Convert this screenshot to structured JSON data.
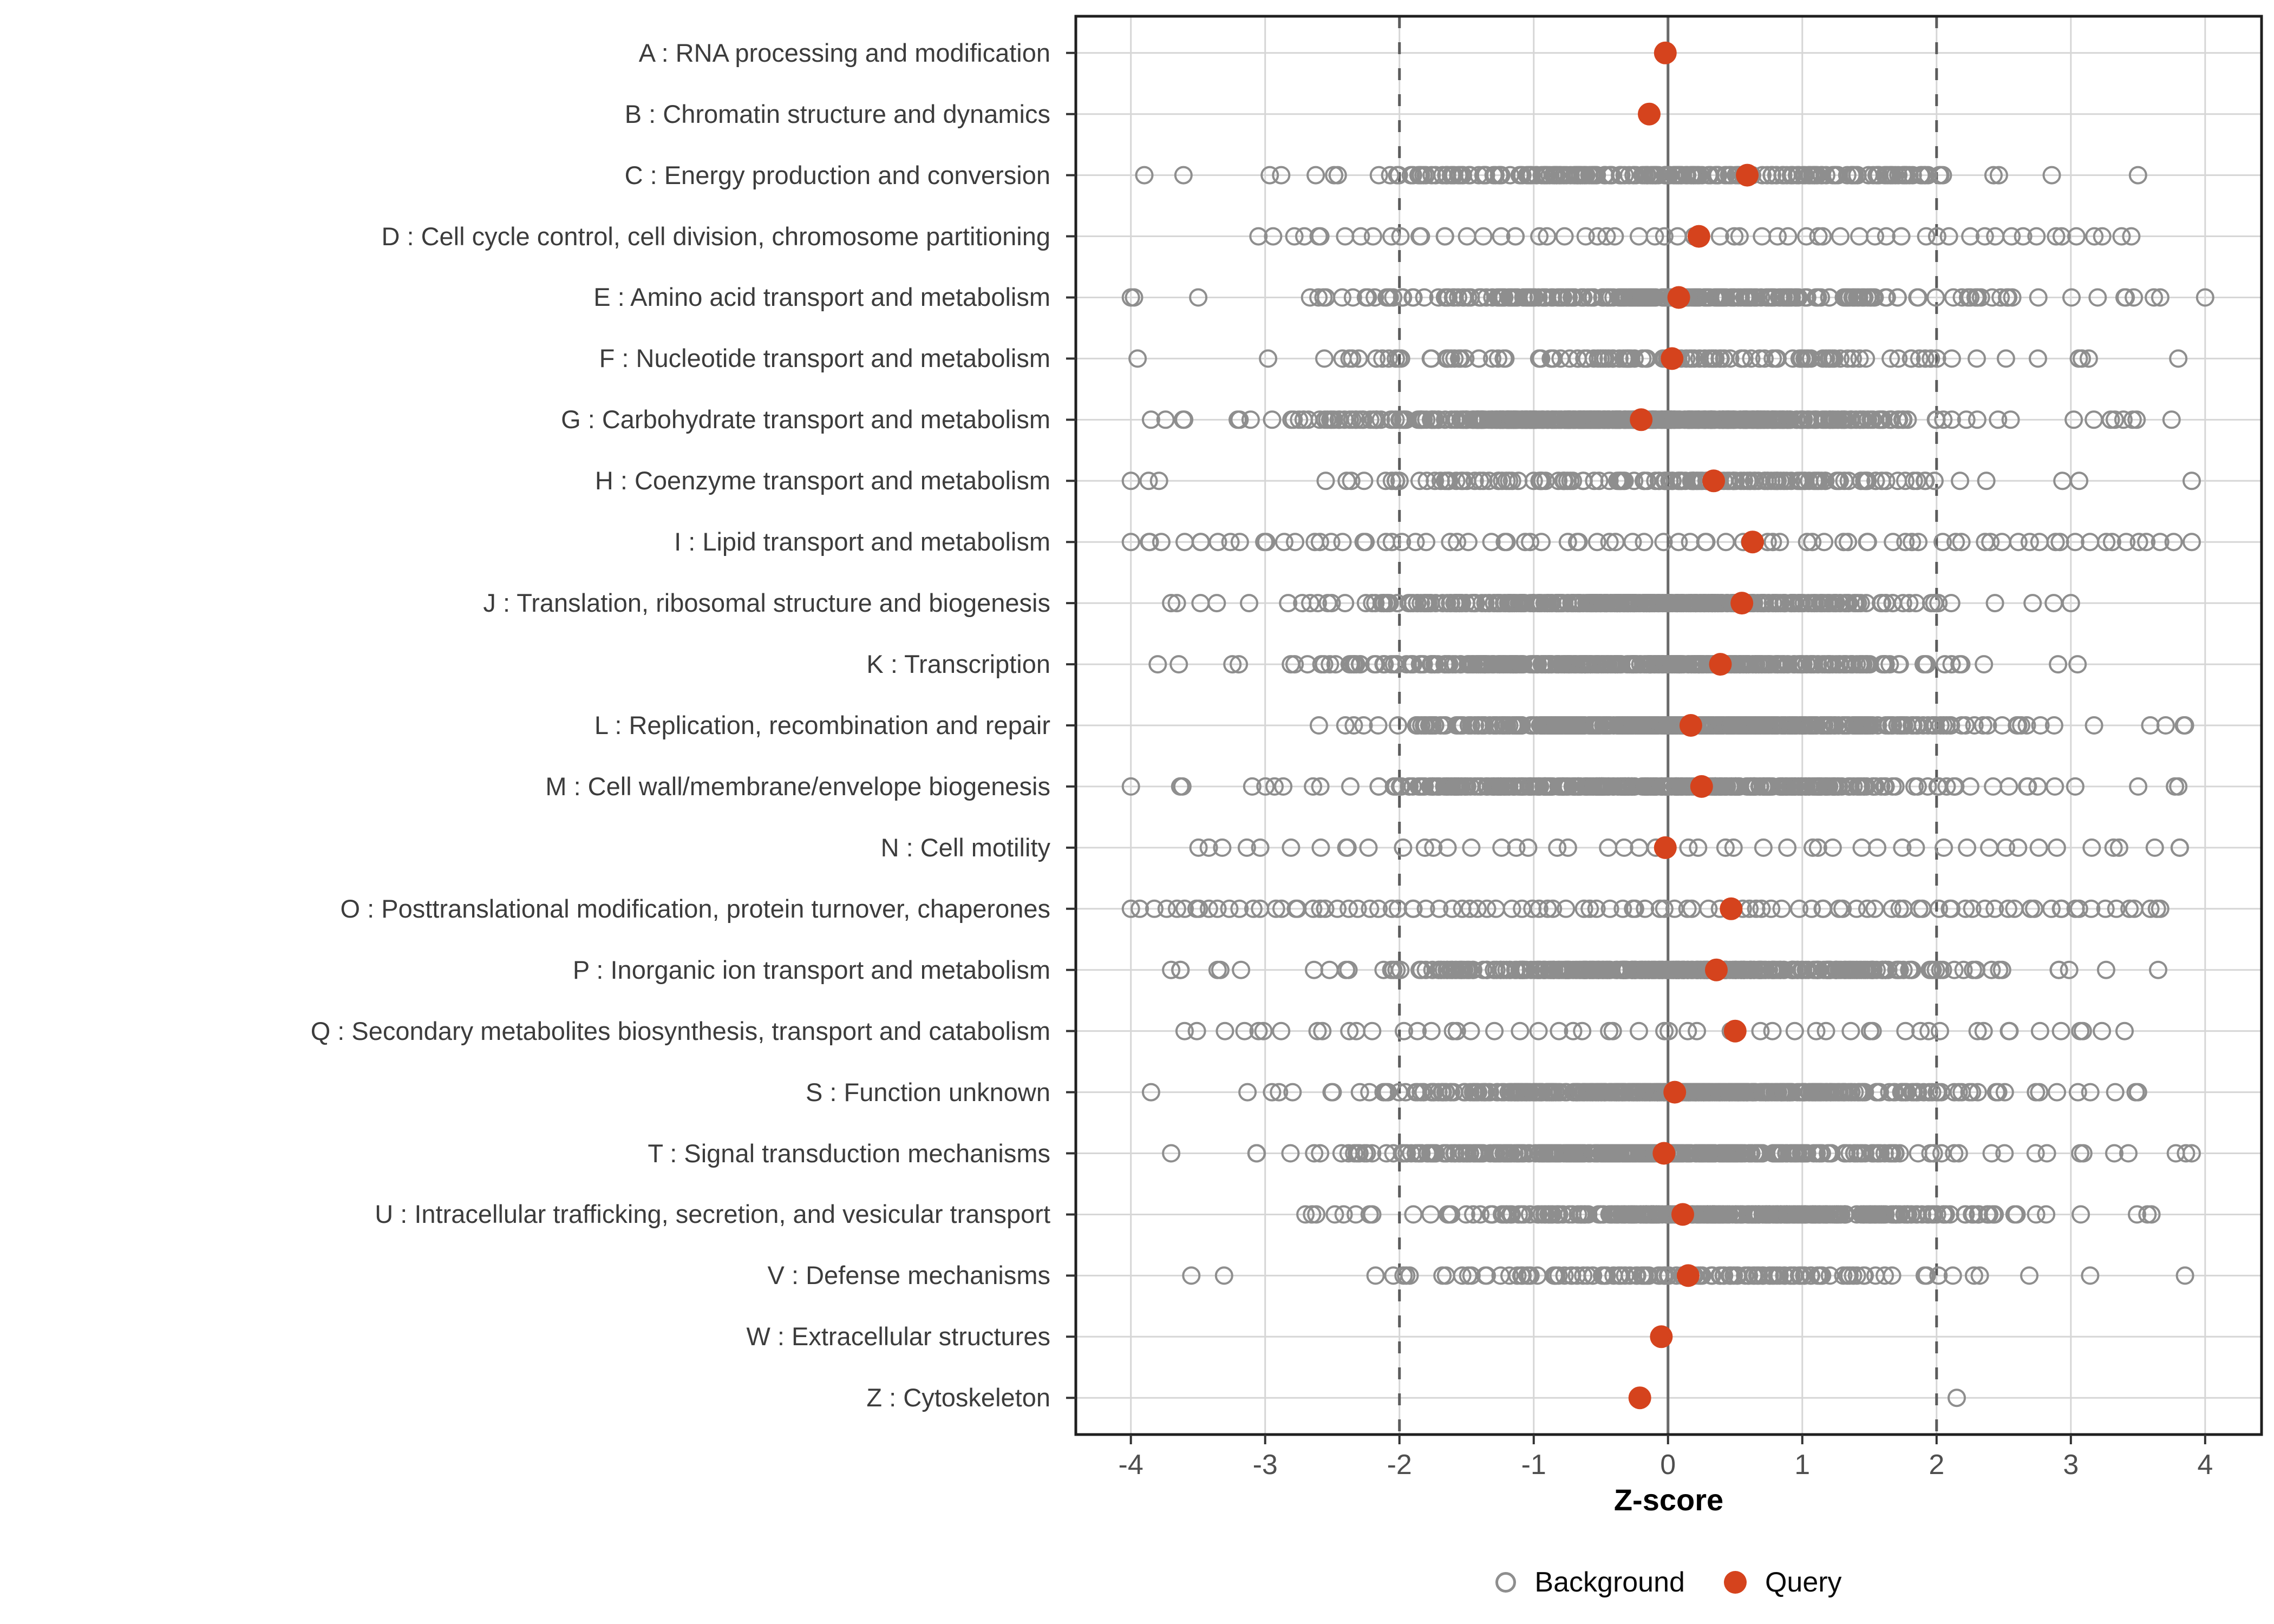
{
  "colors": {
    "query": "#d5431d",
    "background_stroke": "#8e8e8e",
    "gridline": "#d6d6d6",
    "zero_line": "#6a6a6a",
    "threshold_line": "#5c5c5c",
    "panel_border": "#1f1f1f",
    "axis_tick": "#333333",
    "category_text": "#3c3c3c",
    "tick_text": "#4f4f4f",
    "axis_title_text": "#000000"
  },
  "chart_data": {
    "type": "scatter",
    "title": "",
    "xlabel": "Z-score",
    "ylabel": "",
    "x_ticks": [
      -4,
      -3,
      -2,
      -1,
      0,
      1,
      2,
      3,
      4
    ],
    "xlim": [
      -4.41,
      4.42
    ],
    "grid": true,
    "legend_position": "bottom",
    "reference_lines": {
      "solid_at": [
        0
      ],
      "dashed_at": [
        -2,
        2
      ]
    },
    "legend": [
      {
        "label": "Background",
        "marker": "open-circle"
      },
      {
        "label": "Query",
        "marker": "filled-circle"
      }
    ],
    "categories": [
      {
        "code": "A",
        "label": "A : RNA processing and modification",
        "query_z": -0.02,
        "background": {
          "style": "none"
        }
      },
      {
        "code": "B",
        "label": "B : Chromatin structure and dynamics",
        "query_z": -0.14,
        "background": {
          "style": "none"
        }
      },
      {
        "code": "C",
        "label": "C : Energy production and conversion",
        "query_z": 0.59,
        "background": {
          "style": "normal",
          "count": 260,
          "mean": 0.1,
          "sd": 1.05,
          "min": -3.9,
          "max": 3.5
        }
      },
      {
        "code": "D",
        "label": "D : Cell cycle control, cell division, chromosome partitioning",
        "query_z": 0.23,
        "background": {
          "style": "spread",
          "count": 64,
          "min": -3.05,
          "max": 3.45
        }
      },
      {
        "code": "E",
        "label": "E : Amino acid transport and metabolism",
        "query_z": 0.08,
        "background": {
          "style": "normal",
          "count": 300,
          "mean": 0.0,
          "sd": 1.1,
          "min": -4.0,
          "max": 4.0
        }
      },
      {
        "code": "F",
        "label": "F : Nucleotide transport and metabolism",
        "query_z": 0.03,
        "background": {
          "style": "normal",
          "count": 130,
          "mean": 0.0,
          "sd": 1.15,
          "min": -3.95,
          "max": 3.8
        }
      },
      {
        "code": "G",
        "label": "G : Carbohydrate transport and metabolism",
        "query_z": -0.2,
        "background": {
          "style": "normal",
          "count": 580,
          "mean": -0.25,
          "sd": 1.0,
          "min": -3.85,
          "max": 3.75
        }
      },
      {
        "code": "H",
        "label": "H : Coenzyme transport and metabolism",
        "query_z": 0.34,
        "background": {
          "style": "normal",
          "count": 170,
          "mean": -0.1,
          "sd": 1.1,
          "min": -4.0,
          "max": 3.9
        }
      },
      {
        "code": "I",
        "label": "I : Lipid transport and metabolism",
        "query_z": 0.63,
        "background": {
          "style": "spread",
          "count": 85,
          "min": -4.0,
          "max": 3.9
        }
      },
      {
        "code": "J",
        "label": "J : Translation, ribosomal structure and biogenesis",
        "query_z": 0.55,
        "background": {
          "style": "normal",
          "count": 380,
          "mean": -0.1,
          "sd": 1.0,
          "min": -3.7,
          "max": 3.0
        }
      },
      {
        "code": "K",
        "label": "K : Transcription",
        "query_z": 0.39,
        "background": {
          "style": "normal",
          "count": 420,
          "mean": -0.15,
          "sd": 1.0,
          "min": -3.8,
          "max": 3.05
        }
      },
      {
        "code": "L",
        "label": "L : Replication, recombination and repair",
        "query_z": 0.17,
        "background": {
          "style": "normal",
          "count": 470,
          "mean": 0.1,
          "sd": 0.9,
          "min": -2.6,
          "max": 3.85
        }
      },
      {
        "code": "M",
        "label": "M : Cell wall/membrane/envelope biogenesis",
        "query_z": 0.25,
        "background": {
          "style": "normal",
          "count": 460,
          "mean": 0.0,
          "sd": 0.95,
          "min": -4.0,
          "max": 3.8
        }
      },
      {
        "code": "N",
        "label": "N : Cell motility",
        "query_z": -0.02,
        "background": {
          "style": "spread",
          "count": 50,
          "min": -3.55,
          "max": 3.9
        }
      },
      {
        "code": "O",
        "label": "O : Posttranslational modification, protein turnover, chaperones",
        "query_z": 0.47,
        "background": {
          "style": "spread",
          "count": 105,
          "min": -4.0,
          "max": 3.7
        }
      },
      {
        "code": "P",
        "label": "P : Inorganic ion transport and metabolism",
        "query_z": 0.36,
        "background": {
          "style": "normal",
          "count": 420,
          "mean": 0.0,
          "sd": 1.0,
          "min": -3.7,
          "max": 3.65
        }
      },
      {
        "code": "Q",
        "label": "Q : Secondary metabolites biosynthesis, transport and catabolism",
        "query_z": 0.5,
        "background": {
          "style": "spread",
          "count": 55,
          "min": -3.6,
          "max": 3.4
        }
      },
      {
        "code": "S",
        "label": "S : Function unknown",
        "query_z": 0.05,
        "background": {
          "style": "normal",
          "count": 520,
          "mean": 0.1,
          "sd": 0.95,
          "min": -3.85,
          "max": 3.5
        }
      },
      {
        "code": "T",
        "label": "T : Signal transduction mechanisms",
        "query_z": -0.03,
        "background": {
          "style": "normal",
          "count": 430,
          "mean": -0.1,
          "sd": 1.0,
          "min": -3.7,
          "max": 3.9
        }
      },
      {
        "code": "U",
        "label": "U : Intracellular trafficking, secretion, and vesicular transport",
        "query_z": 0.11,
        "background": {
          "style": "normal",
          "count": 380,
          "mean": 0.55,
          "sd": 0.9,
          "min": -2.7,
          "max": 3.6
        }
      },
      {
        "code": "V",
        "label": "V : Defense mechanisms",
        "query_z": 0.15,
        "background": {
          "style": "normal",
          "count": 140,
          "mean": 0.1,
          "sd": 1.1,
          "min": -3.55,
          "max": 3.85
        }
      },
      {
        "code": "W",
        "label": "W : Extracellular structures",
        "query_z": -0.05,
        "background": {
          "style": "none"
        }
      },
      {
        "code": "Z",
        "label": "Z : Cytoskeleton",
        "query_z": -0.21,
        "background": {
          "style": "points",
          "points": [
            2.15
          ]
        }
      }
    ]
  }
}
